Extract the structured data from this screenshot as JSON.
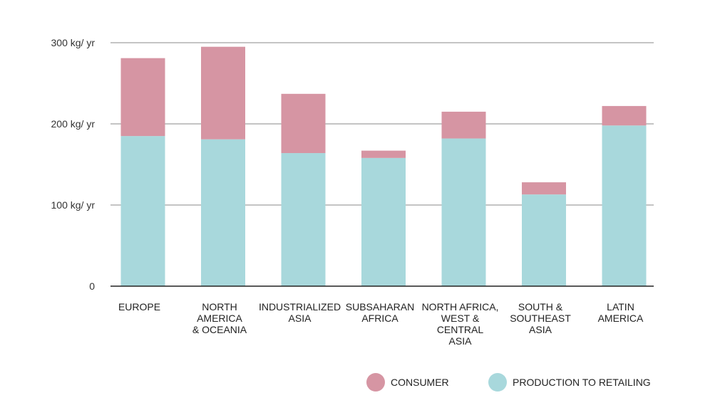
{
  "chart_data": {
    "type": "bar",
    "stacked": true,
    "categories": [
      [
        "EUROPE"
      ],
      [
        "NORTH",
        "AMERICA",
        "& OCEANIA"
      ],
      [
        "INDUSTRIALIZED",
        "ASIA"
      ],
      [
        "SUBSAHARAN",
        "AFRICA"
      ],
      [
        "NORTH AFRICA,",
        "WEST &",
        "CENTRAL",
        "ASIA"
      ],
      [
        "SOUTH &",
        "SOUTHEAST",
        "ASIA"
      ],
      [
        "LATIN",
        "AMERICA"
      ]
    ],
    "series": [
      {
        "name": "PRODUCTION TO RETAILING",
        "color": "#a8d8dc",
        "values": [
          185,
          181,
          164,
          158,
          182,
          113,
          198
        ]
      },
      {
        "name": "CONSUMER",
        "color": "#d695a3",
        "values": [
          96,
          114,
          73,
          9,
          33,
          15,
          24
        ]
      }
    ],
    "y_ticks": [
      {
        "value": 0,
        "label": "0"
      },
      {
        "value": 100,
        "label": "100 kg/ yr"
      },
      {
        "value": 200,
        "label": "200 kg/ yr"
      },
      {
        "value": 300,
        "label": "300 kg/ yr"
      }
    ],
    "ylim": [
      0,
      300
    ],
    "grid": true,
    "legend_position": "bottom-right",
    "legend": [
      {
        "label": "CONSUMER",
        "color": "#d695a3"
      },
      {
        "label": "PRODUCTION TO RETAILING",
        "color": "#a8d8dc"
      }
    ],
    "title": "",
    "xlabel": "",
    "ylabel": ""
  }
}
